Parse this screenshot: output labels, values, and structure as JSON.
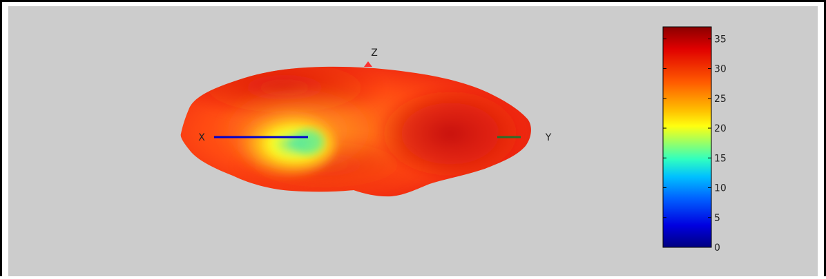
{
  "chart_data": {
    "type": "heatmap",
    "title": "",
    "axes_labels": {
      "x": "X",
      "y": "Y",
      "z": "Z"
    },
    "colorbar": {
      "min": 0,
      "max": 37,
      "ticks": [
        0,
        5,
        10,
        15,
        20,
        25,
        30,
        35
      ],
      "tick_labels": [
        "0",
        "5",
        "10",
        "15",
        "20",
        "25",
        "30",
        "35"
      ],
      "colormap": "jet"
    },
    "surface": {
      "dominant_value_range": [
        28,
        36
      ],
      "min_value_near_x_axis": 17
    }
  },
  "colors": {
    "background": "#cccccc",
    "x_axis": "#0000cc",
    "y_axis": "#2a6e2a",
    "z_axis": "#ff3030"
  }
}
